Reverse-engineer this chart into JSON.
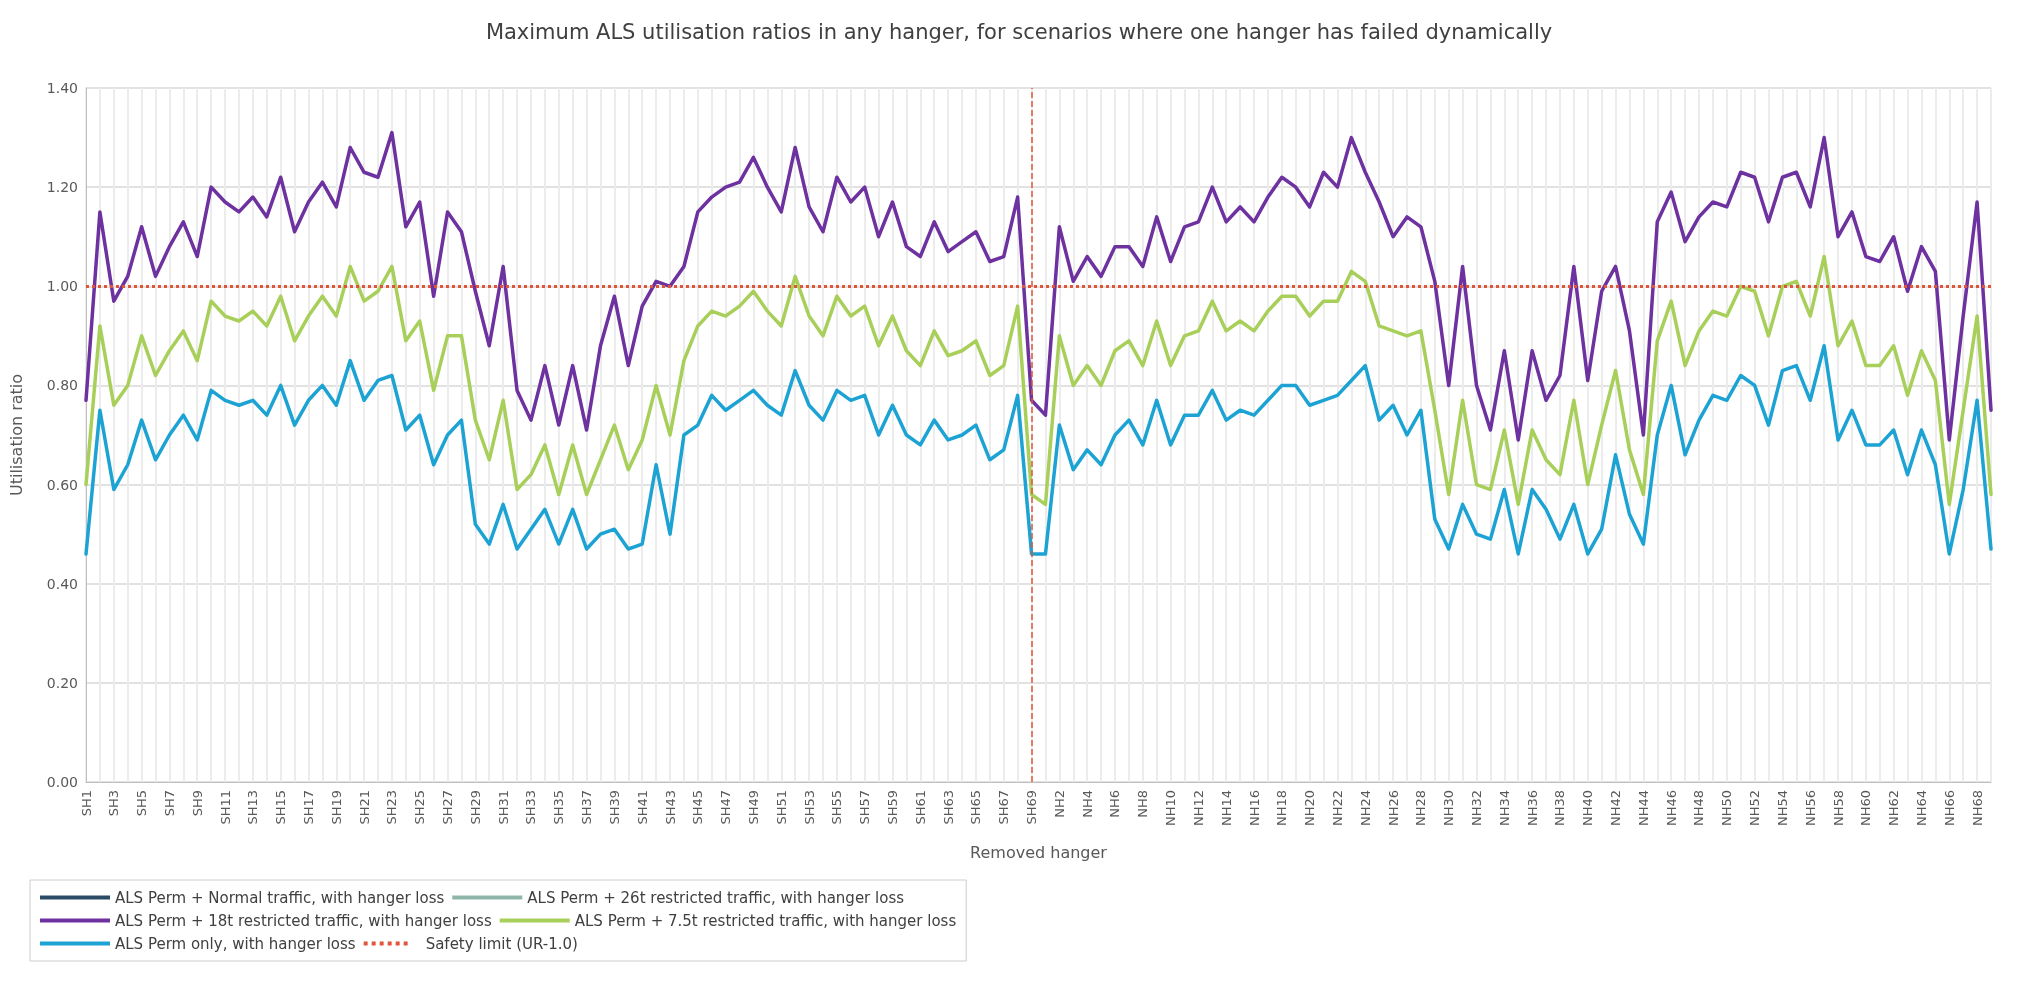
{
  "chart_data": {
    "type": "line",
    "title": "Maximum ALS utilisation ratios in any hanger, for scenarios where one hanger has failed dynamically",
    "xlabel": "Removed hanger",
    "ylabel": "Utilisation ratio",
    "categories": [
      "SH1",
      null,
      "SH3",
      null,
      "SH5",
      null,
      "SH7",
      null,
      "SH9",
      null,
      "SH11",
      null,
      "SH13",
      null,
      "SH15",
      null,
      "SH17",
      null,
      "SH19",
      null,
      "SH21",
      null,
      "SH23",
      null,
      "SH25",
      null,
      "SH27",
      null,
      "SH29",
      null,
      "SH31",
      null,
      "SH33",
      null,
      "SH35",
      null,
      "SH37",
      null,
      "SH39",
      null,
      "SH41",
      null,
      "SH43",
      null,
      "SH45",
      null,
      "SH47",
      null,
      "SH49",
      null,
      "SH51",
      null,
      "SH53",
      null,
      "SH55",
      null,
      "SH57",
      null,
      "SH59",
      null,
      "SH61",
      null,
      "SH63",
      null,
      "SH65",
      null,
      "SH67",
      null,
      "SH69",
      null,
      "NH2",
      null,
      "NH4",
      null,
      "NH6",
      null,
      "NH8",
      null,
      "NH10",
      null,
      "NH12",
      null,
      "NH14",
      null,
      "NH16",
      null,
      "NH18",
      null,
      "NH20",
      null,
      "NH22",
      null,
      "NH24",
      null,
      "NH26",
      null,
      "NH28",
      null,
      "NH30",
      null,
      "NH32",
      null,
      "NH34",
      null,
      "NH36",
      null,
      "NH38",
      null,
      "NH40",
      null,
      "NH42",
      null,
      "NH44",
      null,
      "NH46",
      null,
      "NH48",
      null,
      "NH50",
      null,
      "NH52",
      null,
      "NH54",
      null,
      "NH56",
      null,
      "NH58",
      null,
      "NH60",
      null,
      "NH62",
      null,
      "NH64",
      null,
      "NH66",
      null,
      "NH68",
      null
    ],
    "series": [
      {
        "name": "ALS Perm + Normal traffic, with hanger loss",
        "color": "#2b4a66",
        "values": [
          null,
          null,
          null,
          null,
          null,
          null,
          null,
          null,
          null,
          null,
          null,
          null,
          null,
          null,
          null,
          null,
          null,
          null,
          null,
          null,
          null,
          null,
          null,
          null,
          null,
          null,
          null,
          null,
          null,
          null,
          null,
          null,
          null,
          null,
          null,
          null,
          null,
          null,
          null,
          null,
          null,
          null,
          null,
          null,
          null,
          null,
          null,
          null,
          null,
          null,
          null,
          null,
          null,
          null,
          null,
          null,
          null,
          null,
          null,
          null,
          null,
          null,
          null,
          null,
          null,
          null,
          null,
          null,
          null,
          null,
          null,
          null,
          null,
          null,
          null,
          null,
          null,
          null,
          null,
          null,
          null,
          null,
          null,
          null,
          null,
          null,
          null,
          null,
          null,
          null,
          null,
          null,
          null,
          null,
          null,
          null,
          null,
          null,
          null,
          null,
          null,
          null,
          null,
          null,
          null,
          null,
          null,
          null,
          null,
          null,
          null,
          null,
          null,
          null,
          null,
          null,
          null,
          null,
          null,
          null,
          null,
          null,
          null,
          null,
          null,
          null,
          null,
          null,
          null,
          null,
          null,
          null,
          null,
          null,
          null,
          null,
          null,
          null
        ]
      },
      {
        "name": "ALS Perm + 26t restricted traffic, with hanger loss",
        "color": "#8fb5ab",
        "values": [
          null,
          null,
          null,
          null,
          null,
          null,
          null,
          null,
          null,
          null,
          null,
          null,
          null,
          null,
          null,
          null,
          null,
          null,
          null,
          null,
          null,
          null,
          null,
          null,
          null,
          null,
          null,
          null,
          null,
          null,
          null,
          null,
          null,
          null,
          null,
          null,
          null,
          null,
          null,
          null,
          null,
          null,
          null,
          null,
          null,
          null,
          null,
          null,
          null,
          null,
          null,
          null,
          null,
          null,
          null,
          null,
          null,
          null,
          null,
          null,
          null,
          null,
          null,
          null,
          null,
          null,
          null,
          null,
          null,
          null,
          null,
          null,
          null,
          null,
          null,
          null,
          null,
          null,
          null,
          null,
          null,
          null,
          null,
          null,
          null,
          null,
          null,
          null,
          null,
          null,
          null,
          null,
          null,
          null,
          null,
          null,
          null,
          null,
          null,
          null,
          null,
          null,
          null,
          null,
          null,
          null,
          null,
          null,
          null,
          null,
          null,
          null,
          null,
          null,
          null,
          null,
          null,
          null,
          null,
          null,
          null,
          null,
          null,
          null,
          null,
          null,
          null,
          null,
          null,
          null,
          null,
          null,
          null,
          null,
          null,
          null,
          null,
          null
        ]
      },
      {
        "name": "ALS Perm + 18t restricted traffic, with hanger loss",
        "color": "#6e31a0",
        "values": [
          0.77,
          1.15,
          0.97,
          1.02,
          1.12,
          1.02,
          1.08,
          1.13,
          1.06,
          1.2,
          1.17,
          1.15,
          1.18,
          1.14,
          1.22,
          1.11,
          1.17,
          1.21,
          1.16,
          1.28,
          1.23,
          1.22,
          1.31,
          1.12,
          1.17,
          0.98,
          1.15,
          1.11,
          0.99,
          0.88,
          1.04,
          0.79,
          0.73,
          0.84,
          0.72,
          0.84,
          0.71,
          0.88,
          0.98,
          0.84,
          0.96,
          1.01,
          1.0,
          1.04,
          1.15,
          1.18,
          1.2,
          1.21,
          1.26,
          1.2,
          1.15,
          1.28,
          1.16,
          1.11,
          1.22,
          1.17,
          1.2,
          1.1,
          1.17,
          1.08,
          1.06,
          1.13,
          1.07,
          1.09,
          1.11,
          1.05,
          1.06,
          1.18,
          0.77,
          0.74,
          1.12,
          1.01,
          1.06,
          1.02,
          1.08,
          1.08,
          1.04,
          1.14,
          1.05,
          1.12,
          1.13,
          1.2,
          1.13,
          1.16,
          1.13,
          1.18,
          1.22,
          1.2,
          1.16,
          1.23,
          1.2,
          1.3,
          1.23,
          1.17,
          1.1,
          1.14,
          1.12,
          1.01,
          0.8,
          1.04,
          0.8,
          0.71,
          0.87,
          0.69,
          0.87,
          0.77,
          0.82,
          1.04,
          0.81,
          0.99,
          1.04,
          0.91,
          0.7,
          1.13,
          1.19,
          1.09,
          1.14,
          1.17,
          1.16,
          1.23,
          1.22,
          1.13,
          1.22,
          1.23,
          1.16,
          1.3,
          1.1,
          1.15,
          1.06,
          1.05,
          1.1,
          0.99,
          1.08,
          1.03,
          0.69,
          0.94,
          1.17,
          0.75
        ]
      },
      {
        "name": "ALS Perm + 7.5t restricted traffic, with hanger loss",
        "color": "#a8cf5a",
        "values": [
          0.6,
          0.92,
          0.76,
          0.8,
          0.9,
          0.82,
          0.87,
          0.91,
          0.85,
          0.97,
          0.94,
          0.93,
          0.95,
          0.92,
          0.98,
          0.89,
          0.94,
          0.98,
          0.94,
          1.04,
          0.97,
          0.99,
          1.04,
          0.89,
          0.93,
          0.79,
          0.9,
          0.9,
          0.73,
          0.65,
          0.77,
          0.59,
          0.62,
          0.68,
          0.58,
          0.68,
          0.58,
          0.65,
          0.72,
          0.63,
          0.69,
          0.8,
          0.7,
          0.85,
          0.92,
          0.95,
          0.94,
          0.96,
          0.99,
          0.95,
          0.92,
          1.02,
          0.94,
          0.9,
          0.98,
          0.94,
          0.96,
          0.88,
          0.94,
          0.87,
          0.84,
          0.91,
          0.86,
          0.87,
          0.89,
          0.82,
          0.84,
          0.96,
          0.58,
          0.56,
          0.9,
          0.8,
          0.84,
          0.8,
          0.87,
          0.89,
          0.84,
          0.93,
          0.84,
          0.9,
          0.91,
          0.97,
          0.91,
          0.93,
          0.91,
          0.95,
          0.98,
          0.98,
          0.94,
          0.97,
          0.97,
          1.03,
          1.01,
          0.92,
          0.91,
          0.9,
          0.91,
          0.75,
          0.58,
          0.77,
          0.6,
          0.59,
          0.71,
          0.56,
          0.71,
          0.65,
          0.62,
          0.77,
          0.6,
          0.72,
          0.83,
          0.67,
          0.58,
          0.89,
          0.97,
          0.84,
          0.91,
          0.95,
          0.94,
          1.0,
          0.99,
          0.9,
          1.0,
          1.01,
          0.94,
          1.06,
          0.88,
          0.93,
          0.84,
          0.84,
          0.88,
          0.78,
          0.87,
          0.81,
          0.56,
          0.75,
          0.94,
          0.58
        ]
      },
      {
        "name": "ALS Perm only, with hanger loss",
        "color": "#1da3d3",
        "values": [
          0.46,
          0.75,
          0.59,
          0.64,
          0.73,
          0.65,
          0.7,
          0.74,
          0.69,
          0.79,
          0.77,
          0.76,
          0.77,
          0.74,
          0.8,
          0.72,
          0.77,
          0.8,
          0.76,
          0.85,
          0.77,
          0.81,
          0.82,
          0.71,
          0.74,
          0.64,
          0.7,
          0.73,
          0.52,
          0.48,
          0.56,
          0.47,
          0.51,
          0.55,
          0.48,
          0.55,
          0.47,
          0.5,
          0.51,
          0.47,
          0.48,
          0.64,
          0.5,
          0.7,
          0.72,
          0.78,
          0.75,
          0.77,
          0.79,
          0.76,
          0.74,
          0.83,
          0.76,
          0.73,
          0.79,
          0.77,
          0.78,
          0.7,
          0.76,
          0.7,
          0.68,
          0.73,
          0.69,
          0.7,
          0.72,
          0.65,
          0.67,
          0.78,
          0.46,
          0.46,
          0.72,
          0.63,
          0.67,
          0.64,
          0.7,
          0.73,
          0.68,
          0.77,
          0.68,
          0.74,
          0.74,
          0.79,
          0.73,
          0.75,
          0.74,
          0.77,
          0.8,
          0.8,
          0.76,
          0.77,
          0.78,
          0.81,
          0.84,
          0.73,
          0.76,
          0.7,
          0.75,
          0.53,
          0.47,
          0.56,
          0.5,
          0.49,
          0.59,
          0.46,
          0.59,
          0.55,
          0.49,
          0.56,
          0.46,
          0.51,
          0.66,
          0.54,
          0.48,
          0.7,
          0.8,
          0.66,
          0.73,
          0.78,
          0.77,
          0.82,
          0.8,
          0.72,
          0.83,
          0.84,
          0.77,
          0.88,
          0.69,
          0.75,
          0.68,
          0.68,
          0.71,
          0.62,
          0.71,
          0.64,
          0.46,
          0.59,
          0.77,
          0.47
        ]
      }
    ],
    "ref_lines": [
      {
        "axis": "y",
        "value": 1.0,
        "label": "Safety limit (UR-1.0)",
        "color": "#e0553a",
        "line_style": "dotted"
      },
      {
        "axis": "x",
        "value": "SH69",
        "label": null,
        "color": "#e0553a",
        "line_style": "dashed"
      }
    ],
    "ylim": [
      0,
      1.4
    ],
    "yticks": [
      {
        "value": 0,
        "label": "0.00"
      },
      {
        "value": 0.2,
        "label": "0.20"
      },
      {
        "value": 0.4,
        "label": "0.40"
      },
      {
        "value": 0.6,
        "label": "0.60"
      },
      {
        "value": 0.8,
        "label": "0.80"
      },
      {
        "value": 1.0,
        "label": "1.00"
      },
      {
        "value": 1.2,
        "label": "1.20"
      },
      {
        "value": 1.4,
        "label": "1.40"
      }
    ],
    "grid": true,
    "legend": "bottom left",
    "marker": "none",
    "line_style": "solid"
  }
}
